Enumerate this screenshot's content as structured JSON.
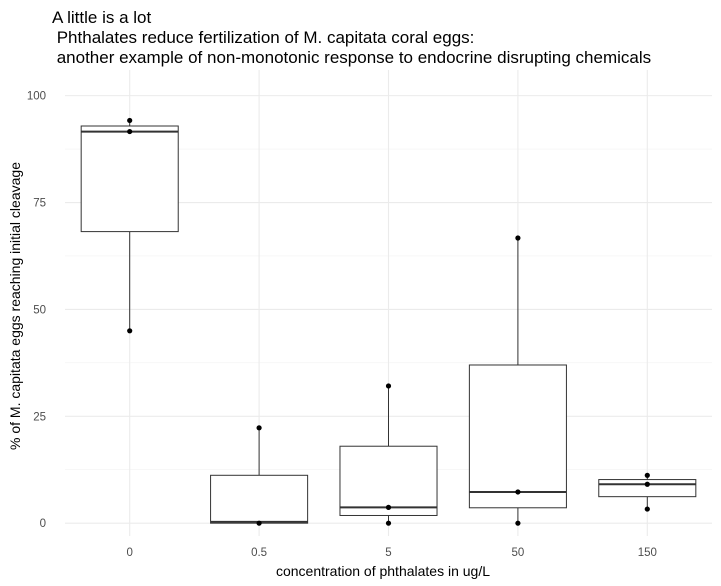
{
  "chart_data": {
    "type": "box",
    "title_lines": [
      "A little is a lot",
      " Phthalates reduce fertilization of M. capitata coral eggs:",
      " another example of non-monotonic response to endocrine disrupting chemicals"
    ],
    "xlabel": "concentration of phthalates in ug/L",
    "ylabel": "% of M. capitata eggs reaching initial cleavage",
    "categories": [
      "0",
      "0.5",
      "5",
      "50",
      "150"
    ],
    "yticks": [
      0,
      25,
      50,
      75,
      100
    ],
    "ytick_labels": [
      "0",
      "25",
      "50",
      "75",
      "100"
    ],
    "ylim": [
      -3,
      106
    ],
    "grid": true,
    "boxes": [
      {
        "category": "0",
        "min": 45,
        "q1": 68.2,
        "median": 91.6,
        "q3": 92.9,
        "max": 94.2,
        "points": [
          94.2,
          91.6,
          45
        ]
      },
      {
        "category": "0.5",
        "min": 0,
        "q1": 0,
        "median": 0.3,
        "q3": 11.2,
        "max": 22.3,
        "points": [
          22.3,
          0
        ]
      },
      {
        "category": "5",
        "min": 0,
        "q1": 1.8,
        "median": 3.7,
        "q3": 18,
        "max": 32.1,
        "points": [
          32.1,
          3.7,
          0
        ]
      },
      {
        "category": "50",
        "min": 0,
        "q1": 3.6,
        "median": 7.3,
        "q3": 37,
        "max": 66.7,
        "points": [
          66.7,
          7.3,
          0
        ]
      },
      {
        "category": "150",
        "min": 3.3,
        "q1": 6.2,
        "median": 9.1,
        "q3": 10.2,
        "max": 11.2,
        "points": [
          11.2,
          9.1,
          3.3
        ]
      }
    ]
  }
}
